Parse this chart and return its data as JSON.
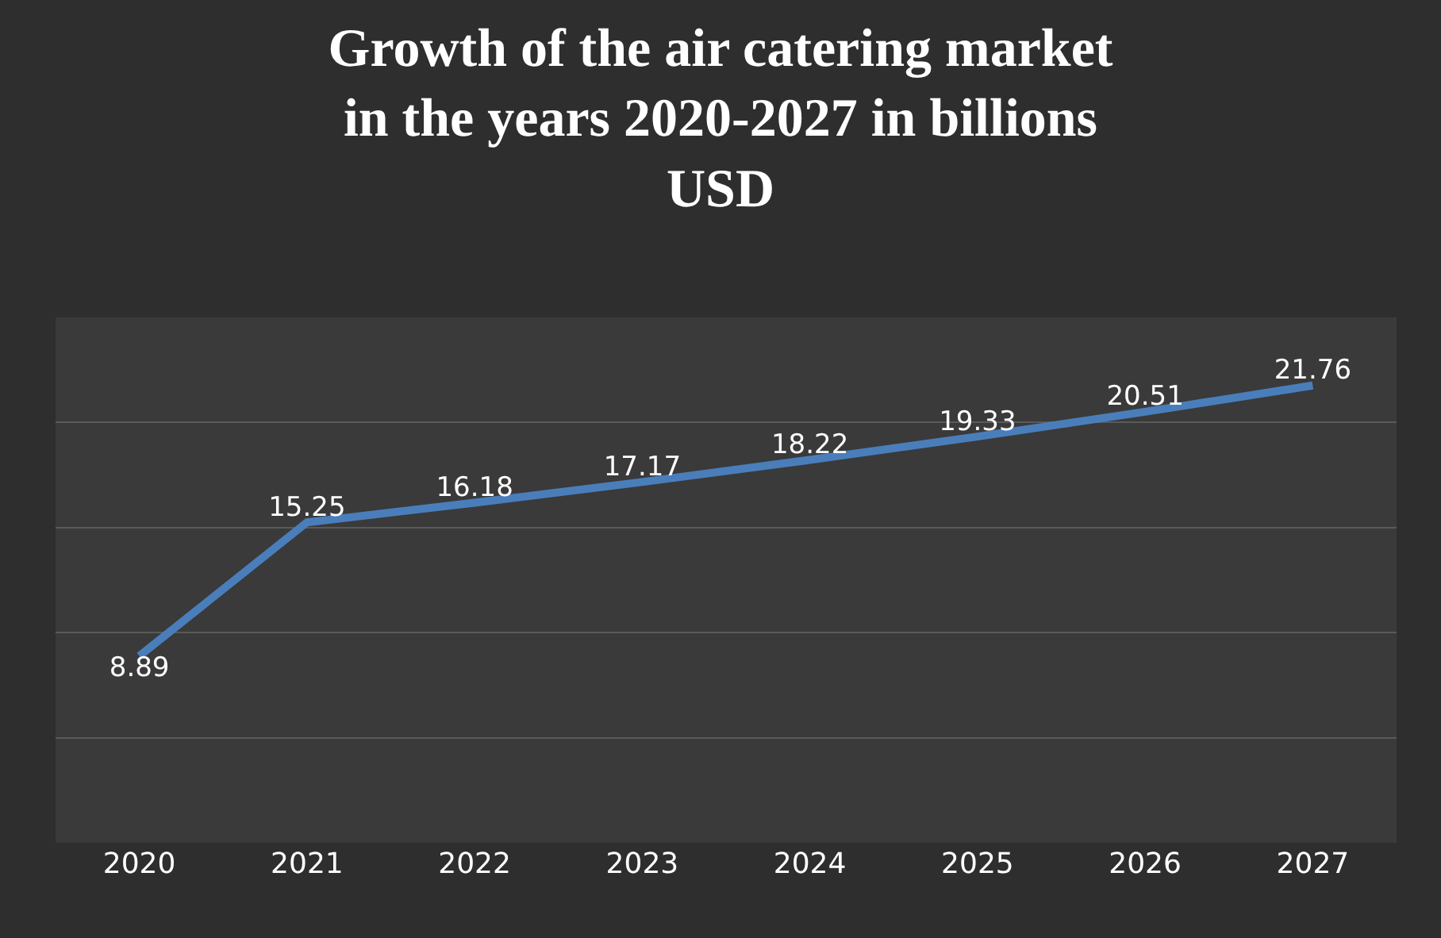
{
  "chart_data": {
    "type": "line",
    "title": "Growth of the air catering market\nin the years 2020-2027 in billions\nUSD",
    "categories": [
      "2020",
      "2021",
      "2022",
      "2023",
      "2024",
      "2025",
      "2026",
      "2027"
    ],
    "series": [
      {
        "color": "#4a7ebb",
        "values": [
          8.89,
          15.25,
          16.18,
          17.17,
          18.22,
          19.33,
          20.51,
          21.76
        ]
      }
    ],
    "ylim": [
      0,
      25
    ],
    "yticks": [
      {
        "value": 0,
        "label": null
      },
      {
        "value": 5,
        "label": null
      },
      {
        "value": 10,
        "label": null
      },
      {
        "value": 15,
        "label": null
      },
      {
        "value": 20,
        "label": null
      },
      {
        "value": 25,
        "label": null
      }
    ],
    "tick_labels": "x",
    "grid": "y",
    "data_labels": true,
    "marker": "none",
    "line_style": "solid"
  }
}
